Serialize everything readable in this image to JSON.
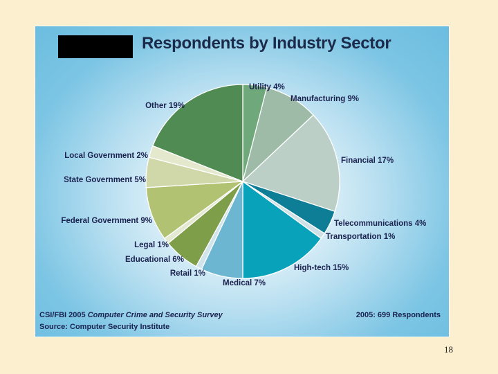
{
  "colors": {
    "background": "#fbefcf",
    "label_text": "#1b2250",
    "title_text": "#1c2a4a",
    "title_block": "#000000"
  },
  "chart_data": {
    "type": "pie",
    "title": "Respondents by Industry Sector",
    "start_angle_deg": 0,
    "direction": "clockwise",
    "slices": [
      {
        "name": "Utility",
        "label": "Utility 4%",
        "value": 4,
        "color": "#6fa87b"
      },
      {
        "name": "Manufacturing",
        "label": "Manufacturing 9%",
        "value": 9,
        "color": "#9dbba7"
      },
      {
        "name": "Financial",
        "label": "Financial 17%",
        "value": 17,
        "color": "#bccfc6"
      },
      {
        "name": "Telecommunications",
        "label": "Telecommunications 4%",
        "value": 4,
        "color": "#0e7e97"
      },
      {
        "name": "Transportation",
        "label": "Transportation 1%",
        "value": 1,
        "color": "#cfe1e6"
      },
      {
        "name": "High-tech",
        "label": "High-tech 15%",
        "value": 15,
        "color": "#08a2ba"
      },
      {
        "name": "Medical",
        "label": "Medical 7%",
        "value": 7,
        "color": "#6cb6d2"
      },
      {
        "name": "Retail",
        "label": "Retail 1%",
        "value": 1,
        "color": "#d1e3eb"
      },
      {
        "name": "Educational",
        "label": "Educational 6%",
        "value": 6,
        "color": "#7e9e4a"
      },
      {
        "name": "Legal",
        "label": "Legal 1%",
        "value": 1,
        "color": "#e4ead1"
      },
      {
        "name": "Federal Government",
        "label": "Federal Government 9%",
        "value": 9,
        "color": "#b1c272"
      },
      {
        "name": "State Government",
        "label": "State Government 5%",
        "value": 5,
        "color": "#d0d7a9"
      },
      {
        "name": "Local Government",
        "label": "Local Government 2%",
        "value": 2,
        "color": "#e4e8cd"
      },
      {
        "name": "Other",
        "label": "Other 19%",
        "value": 19,
        "color": "#4f8b52"
      }
    ],
    "footer_left_prefix": "CSI/FBI 2005 ",
    "footer_left_italic": "Computer Crime and Security Survey",
    "footer_source": "Source: Computer Security Institute",
    "footer_right": "2005: 699 Respondents"
  },
  "page_number": "18"
}
